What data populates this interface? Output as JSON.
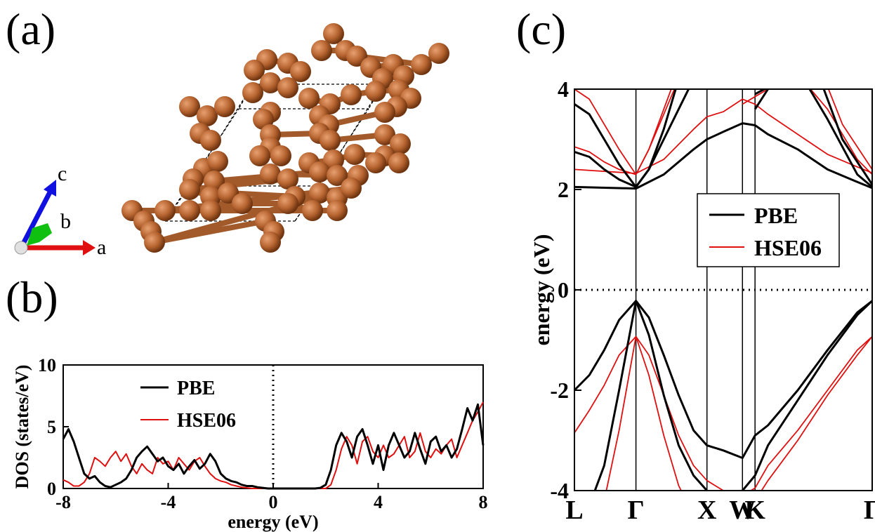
{
  "panels": {
    "a": "(a)",
    "b": "(b)",
    "c": "(c)"
  },
  "structure": {
    "axes": {
      "a": "a",
      "b": "b",
      "c": "c"
    },
    "atom_color": "#b5632f",
    "axis_colors": {
      "a": "#e01010",
      "b": "#10c010",
      "c": "#1010e0"
    }
  },
  "colors": {
    "pbe": "#000000",
    "hse06": "#e01010"
  },
  "chart_data": [
    {
      "type": "line",
      "panel": "b",
      "xlabel": "energy (eV)",
      "ylabel": "DOS (states/eV)",
      "xlim": [
        -8,
        8
      ],
      "ylim": [
        0,
        10
      ],
      "xticks": [
        -8,
        -4,
        0,
        4,
        8
      ],
      "yticks": [
        0,
        5,
        10
      ],
      "legend": "top-left",
      "fermi_line": 0,
      "series": [
        {
          "name": "PBE",
          "x": [
            -8,
            -7.8,
            -7.6,
            -7.4,
            -7.2,
            -7.0,
            -6.8,
            -6.6,
            -6.4,
            -6.2,
            -6.0,
            -5.8,
            -5.6,
            -5.4,
            -5.2,
            -5.0,
            -4.8,
            -4.6,
            -4.4,
            -4.2,
            -4.0,
            -3.8,
            -3.6,
            -3.4,
            -3.2,
            -3.0,
            -2.8,
            -2.6,
            -2.4,
            -2.2,
            -2.0,
            -1.8,
            -1.6,
            -1.4,
            -1.2,
            -1.0,
            -0.8,
            -0.6,
            -0.4,
            -0.2,
            0,
            1.6,
            1.8,
            2.0,
            2.2,
            2.4,
            2.6,
            2.8,
            3.0,
            3.2,
            3.4,
            3.6,
            3.8,
            4.0,
            4.2,
            4.4,
            4.6,
            4.8,
            5.0,
            5.2,
            5.4,
            5.6,
            5.8,
            6.0,
            6.2,
            6.4,
            6.6,
            6.8,
            7.0,
            7.2,
            7.4,
            7.6,
            7.8,
            8.0
          ],
          "y": [
            4.0,
            4.8,
            3.8,
            2.5,
            1.2,
            0.8,
            1.0,
            0.5,
            0.2,
            0.1,
            0.3,
            0.5,
            0.8,
            1.5,
            2.5,
            3.0,
            3.4,
            2.8,
            2.2,
            2.5,
            1.8,
            1.5,
            2.0,
            1.2,
            1.8,
            2.3,
            1.6,
            2.0,
            2.8,
            2.2,
            1.2,
            0.8,
            0.6,
            0.5,
            0.3,
            0.2,
            0.2,
            0.1,
            0.05,
            0.0,
            0.0,
            0.0,
            0.05,
            0.3,
            1.5,
            3.5,
            4.5,
            3.8,
            2.5,
            4.2,
            4.8,
            3.5,
            2.0,
            3.5,
            1.5,
            3.5,
            4.5,
            3.5,
            2.5,
            3.0,
            4.5,
            3.2,
            2.0,
            3.8,
            4.2,
            3.0,
            3.5,
            2.5,
            3.2,
            4.8,
            6.5,
            5.5,
            6.8,
            3.5
          ]
        },
        {
          "name": "HSE06",
          "x": [
            -8,
            -7.8,
            -7.6,
            -7.4,
            -7.2,
            -7.0,
            -6.8,
            -6.6,
            -6.4,
            -6.2,
            -6.0,
            -5.8,
            -5.6,
            -5.4,
            -5.2,
            -5.0,
            -4.8,
            -4.6,
            -4.4,
            -4.2,
            -4.0,
            -3.8,
            -3.6,
            -3.4,
            -3.2,
            -3.0,
            -2.8,
            -2.6,
            -2.4,
            -2.2,
            -2.0,
            -1.8,
            -1.6,
            -1.4,
            -1.2,
            -1.0,
            -0.8,
            -0.6,
            -0.4,
            -0.2,
            0,
            2.0,
            2.2,
            2.4,
            2.6,
            2.8,
            3.0,
            3.2,
            3.4,
            3.6,
            3.8,
            4.0,
            4.2,
            4.4,
            4.6,
            4.8,
            5.0,
            5.2,
            5.4,
            5.6,
            5.8,
            6.0,
            6.2,
            6.4,
            6.6,
            6.8,
            7.0,
            7.2,
            7.4,
            7.6,
            7.8,
            8.0
          ],
          "y": [
            0.7,
            0.5,
            0.2,
            0.2,
            0.5,
            1.2,
            2.5,
            2.2,
            1.8,
            2.5,
            3.0,
            2.2,
            2.8,
            1.8,
            1.2,
            2.0,
            1.5,
            1.2,
            2.5,
            2.0,
            2.2,
            1.5,
            2.5,
            2.0,
            1.5,
            2.2,
            2.5,
            1.8,
            1.2,
            0.8,
            0.6,
            0.5,
            0.3,
            0.2,
            0.1,
            0.05,
            0.0,
            0.0,
            0.0,
            0.0,
            0.0,
            0.0,
            0.3,
            1.5,
            3.2,
            4.2,
            3.5,
            2.0,
            3.8,
            4.2,
            3.0,
            2.5,
            3.5,
            2.5,
            2.8,
            3.5,
            4.2,
            2.5,
            3.0,
            4.5,
            3.0,
            2.5,
            3.2,
            2.8,
            3.5,
            4.0,
            2.5,
            3.5,
            4.5,
            5.5,
            6.2,
            7.0
          ]
        }
      ]
    },
    {
      "type": "line",
      "panel": "c",
      "ylabel": "energy (eV)",
      "ylim": [
        -4,
        4
      ],
      "yticks": [
        -4,
        -2,
        0,
        2,
        4
      ],
      "kpoints": [
        "L",
        "Γ",
        "X",
        "W",
        "K",
        "Γ"
      ],
      "kpositions": [
        0,
        0.2066,
        0.4451,
        0.5643,
        0.6065,
        1.0
      ],
      "legend": "center-right",
      "fermi_line": 0,
      "series": [
        {
          "name": "PBE",
          "bands": [
            {
              "k": [
                0,
                0.05,
                0.1,
                0.15,
                0.2066,
                0.25,
                0.3,
                0.35,
                0.4,
                0.4451,
                0.5,
                0.5643,
                0.6065,
                0.65,
                0.75,
                0.85,
                0.95,
                1.0
              ],
              "e": [
                -2.0,
                -1.7,
                -1.2,
                -0.6,
                -0.22,
                -0.55,
                -1.3,
                -2.1,
                -2.8,
                -3.1,
                -3.2,
                -3.35,
                -2.9,
                -2.7,
                -2.0,
                -1.2,
                -0.45,
                -0.22
              ]
            },
            {
              "k": [
                0,
                0.05,
                0.1,
                0.15,
                0.2066,
                0.25,
                0.3,
                0.35,
                0.4,
                0.4451,
                0.5,
                0.5643,
                0.6065,
                0.65,
                0.75,
                0.85,
                0.95,
                1.0
              ],
              "e": [
                -4.4,
                -4.3,
                -3.5,
                -2.0,
                -0.22,
                -0.9,
                -2.1,
                -3.1,
                -3.7,
                -4.0,
                -4.1,
                -4.0,
                -3.7,
                -3.1,
                -2.2,
                -1.3,
                -0.5,
                -0.22
              ]
            },
            {
              "k": [
                0,
                0.2066,
                0.3,
                0.4,
                0.4451,
                0.5,
                0.5643,
                0.6065,
                0.65,
                0.75,
                0.85,
                0.95,
                1.0
              ],
              "e": [
                2.05,
                2.02,
                2.3,
                2.8,
                3.0,
                3.15,
                3.32,
                3.28,
                3.1,
                2.8,
                2.4,
                2.15,
                2.03
              ]
            },
            {
              "k": [
                0,
                0.05,
                0.1,
                0.15,
                0.2066,
                0.25,
                0.3,
                0.35,
                0.4,
                0.4451
              ],
              "e": [
                3.7,
                3.5,
                3.0,
                2.5,
                2.05,
                2.4,
                3.0,
                3.6,
                4.2,
                4.5
              ]
            },
            {
              "k": [
                0,
                0.05,
                0.1,
                0.15,
                0.2066,
                0.25,
                0.3,
                0.35
              ],
              "e": [
                2.75,
                2.65,
                2.4,
                2.2,
                2.05,
                2.4,
                3.2,
                4.2
              ]
            },
            {
              "k": [
                0.6065,
                0.65,
                0.75,
                0.85,
                0.95,
                1.0
              ],
              "e": [
                3.6,
                4.0,
                4.4,
                3.4,
                2.3,
                2.05
              ]
            },
            {
              "k": [
                0.6065,
                0.7,
                0.8,
                0.9,
                1.0
              ],
              "e": [
                3.9,
                4.2,
                4.6,
                3.0,
                2.1
              ]
            }
          ]
        },
        {
          "name": "HSE06",
          "bands": [
            {
              "k": [
                0,
                0.05,
                0.1,
                0.15,
                0.2066,
                0.25,
                0.3,
                0.35,
                0.4,
                0.4451,
                0.5,
                0.5643,
                0.6065,
                0.65,
                0.75,
                0.85,
                0.95,
                1.0
              ],
              "e": [
                -2.85,
                -2.4,
                -1.9,
                -1.3,
                -0.93,
                -1.3,
                -2.1,
                -2.9,
                -3.5,
                -3.8,
                -4.0,
                -4.1,
                -3.95,
                -3.5,
                -2.8,
                -2.0,
                -1.2,
                -0.93
              ]
            },
            {
              "k": [
                0,
                0.05,
                0.1,
                0.15,
                0.2066,
                0.25,
                0.3,
                0.35,
                0.4
              ],
              "e": [
                -5.2,
                -5.0,
                -4.2,
                -2.8,
                -0.93,
                -1.7,
                -2.9,
                -3.9,
                -4.5
              ]
            },
            {
              "k": [
                0.6065,
                0.65,
                0.75,
                0.85,
                0.95,
                1.0
              ],
              "e": [
                -4.2,
                -3.8,
                -3.0,
                -2.1,
                -1.3,
                -0.93
              ]
            },
            {
              "k": [
                0,
                0.2066,
                0.3,
                0.4,
                0.4451,
                0.5,
                0.5643,
                0.6065,
                0.65,
                0.75,
                0.85,
                0.95,
                1.0
              ],
              "e": [
                2.4,
                2.32,
                2.6,
                3.2,
                3.45,
                3.55,
                3.8,
                3.7,
                3.5,
                3.1,
                2.7,
                2.45,
                2.33
              ]
            },
            {
              "k": [
                0,
                0.05,
                0.1,
                0.15,
                0.2066,
                0.25,
                0.3,
                0.35,
                0.4
              ],
              "e": [
                4.0,
                3.8,
                3.3,
                2.8,
                2.3,
                2.8,
                3.5,
                4.2,
                4.6
              ]
            },
            {
              "k": [
                0,
                0.05,
                0.1,
                0.15,
                0.2066,
                0.25,
                0.3,
                0.35
              ],
              "e": [
                2.85,
                2.75,
                2.55,
                2.4,
                2.3,
                2.8,
                3.6,
                4.4
              ]
            },
            {
              "k": [
                0.5643,
                0.6065,
                0.65,
                0.75,
                0.85,
                0.95,
                1.0
              ],
              "e": [
                3.7,
                3.85,
                4.0,
                4.3,
                3.6,
                2.6,
                2.3
              ]
            },
            {
              "k": [
                0.6065,
                0.7,
                0.8,
                0.9,
                1.0
              ],
              "e": [
                4.1,
                4.4,
                4.8,
                3.3,
                2.4
              ]
            }
          ]
        }
      ]
    }
  ]
}
